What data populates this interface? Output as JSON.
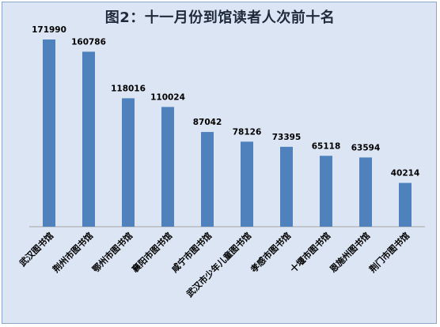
{
  "chart_data": {
    "type": "bar",
    "title": "图2：十一月份到馆读者人次前十名",
    "categories": [
      "武汉图书馆",
      "荆州市图书馆",
      "鄂州市图书馆",
      "襄阳市图书馆",
      "咸宁市图书馆",
      "武汉市少年儿童图书馆",
      "孝感市图书馆",
      "十堰市图书馆",
      "恩施州图书馆",
      "荆门市图书馆"
    ],
    "values": [
      171990,
      160786,
      118016,
      110024,
      87042,
      78126,
      73395,
      65118,
      63594,
      40214
    ],
    "ylim": [
      0,
      180000
    ],
    "grid": false,
    "legend": "none",
    "colors": {
      "bar": "#4f81bd",
      "background": "#dbe5f3",
      "axis": "#a6a6a6"
    }
  }
}
